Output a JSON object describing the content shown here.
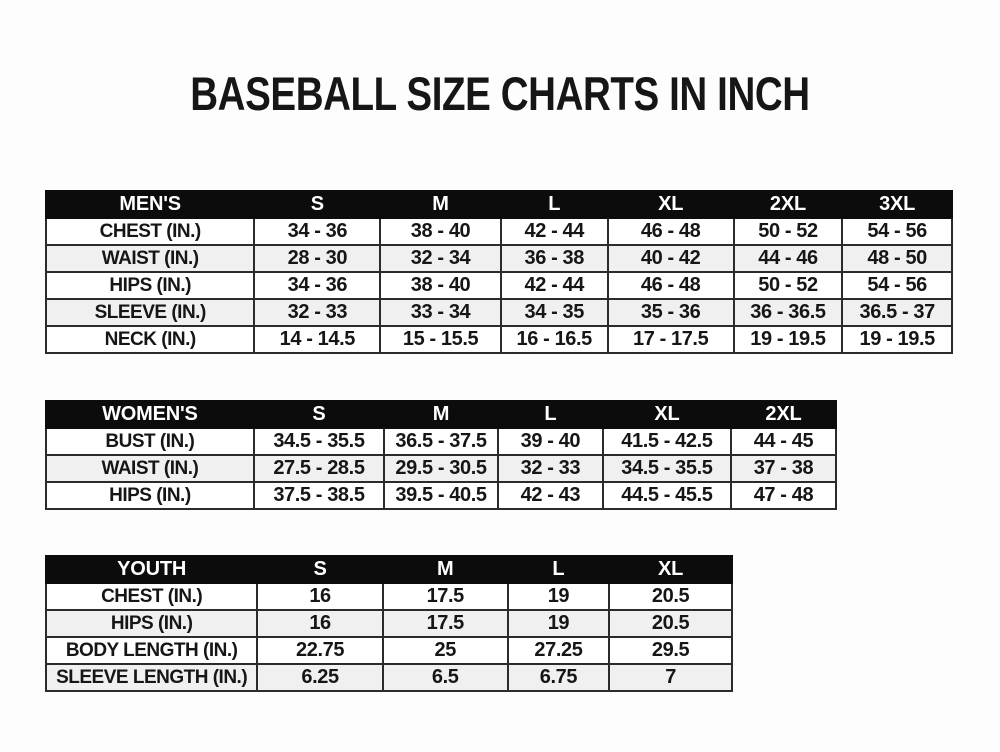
{
  "title": "BASEBALL SIZE CHARTS IN INCH",
  "colors": {
    "header_bg": "#0c0c0c",
    "header_text": "#ffffff",
    "row_alt_bg": "#f0f0f0",
    "row_bg": "#ffffff",
    "border": "#2b2b2b",
    "text": "#161616",
    "page_bg": "#fdfdfd"
  },
  "tables": [
    {
      "name": "mens",
      "header": [
        "MEN'S",
        "S",
        "M",
        "L",
        "XL",
        "2XL",
        "3XL"
      ],
      "rows": [
        [
          "CHEST (IN.)",
          "34 - 36",
          "38 - 40",
          "42 - 44",
          "46 - 48",
          "50 - 52",
          "54 - 56"
        ],
        [
          "WAIST (IN.)",
          "28 - 30",
          "32 - 34",
          "36 - 38",
          "40 - 42",
          "44 - 46",
          "48 - 50"
        ],
        [
          "HIPS (IN.)",
          "34 - 36",
          "38 - 40",
          "42 - 44",
          "46 - 48",
          "50 - 52",
          "54 - 56"
        ],
        [
          "SLEEVE (IN.)",
          "32 - 33",
          "33 - 34",
          "34 - 35",
          "35 - 36",
          "36 - 36.5",
          "36.5 - 37"
        ],
        [
          "NECK (IN.)",
          "14 - 14.5",
          "15 - 15.5",
          "16 - 16.5",
          "17 - 17.5",
          "19 - 19.5",
          "19 - 19.5"
        ]
      ]
    },
    {
      "name": "womens",
      "header": [
        "WOMEN'S",
        "S",
        "M",
        "L",
        "XL",
        "2XL"
      ],
      "rows": [
        [
          "BUST (IN.)",
          "34.5 - 35.5",
          "36.5 - 37.5",
          "39 - 40",
          "41.5 - 42.5",
          "44 - 45"
        ],
        [
          "WAIST (IN.)",
          "27.5 - 28.5",
          "29.5 - 30.5",
          "32 - 33",
          "34.5 - 35.5",
          "37 - 38"
        ],
        [
          "HIPS (IN.)",
          "37.5 - 38.5",
          "39.5 - 40.5",
          "42 - 43",
          "44.5 - 45.5",
          "47 - 48"
        ]
      ]
    },
    {
      "name": "youth",
      "header": [
        "YOUTH",
        "S",
        "M",
        "L",
        "XL"
      ],
      "rows": [
        [
          "CHEST (IN.)",
          "16",
          "17.5",
          "19",
          "20.5"
        ],
        [
          "HIPS (IN.)",
          "16",
          "17.5",
          "19",
          "20.5"
        ],
        [
          "BODY LENGTH (IN.)",
          "22.75",
          "25",
          "27.25",
          "29.5"
        ],
        [
          "SLEEVE LENGTH (IN.)",
          "6.25",
          "6.5",
          "6.75",
          "7"
        ]
      ]
    }
  ]
}
